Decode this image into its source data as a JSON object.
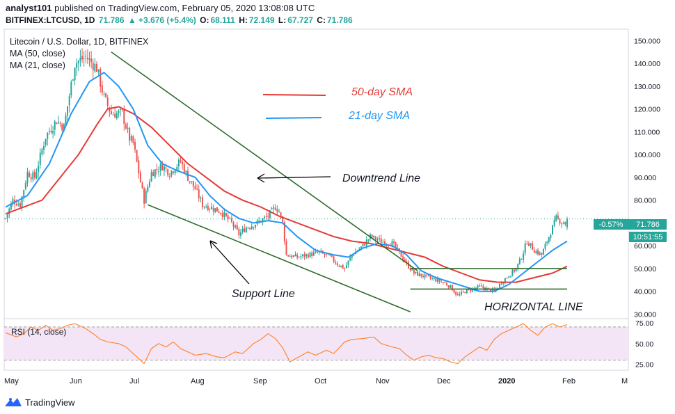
{
  "header": {
    "publisher": "analyst101",
    "published_text": "published on TradingView.com, February 05, 2020 13:08:08 UTC",
    "symbol": "BITFINEX:LTCUSD, 1D",
    "last": "71.786",
    "change": "▲ +3.676 (+5.4%)",
    "o_label": "O:",
    "o_value": "68.111",
    "h_label": "H:",
    "h_value": "72.149",
    "l_label": "L:",
    "l_value": "67.727",
    "c_label": "C:",
    "c_value": "71.786"
  },
  "legend": {
    "title": "Litecoin / U.S. Dollar, 1D, BITFINEX",
    "ma50": "MA (50, close)",
    "ma21": "MA (21, close)"
  },
  "annotations": {
    "sma50": "50-day SMA",
    "sma21": "21-day SMA",
    "downtrend": "Downtrend Line",
    "support": "Support Line",
    "horizontal": "HORIZONTAL LINE"
  },
  "rsi_label": "RSI (14, close)",
  "price_badges": {
    "change_pct": "-0.57%",
    "last": "71.786",
    "countdown": "10:51:55"
  },
  "footer": {
    "brand": "TradingView"
  },
  "colors": {
    "up": "#26a69a",
    "down": "#ef5350",
    "ma50": "#e53935",
    "ma21": "#2196f3",
    "trend": "#2e6b2e",
    "rsi": "#ff7f27",
    "rsi_band": "#f3e5f5",
    "text": "#131722"
  },
  "chart_data": [
    {
      "type": "candlestick",
      "title": "Litecoin / U.S. Dollar, 1D, BITFINEX",
      "y_ticks": [
        150,
        140,
        130,
        120,
        110,
        100,
        90,
        80,
        70,
        60,
        50,
        40,
        30
      ],
      "y_tick_labels": [
        "150.000",
        "140.000",
        "130.000",
        "120.000",
        "110.000",
        "100.000",
        "90.000",
        "80.000",
        "70.000",
        "60.000",
        "50.000",
        "40.000",
        "30.000"
      ],
      "ylim": [
        28,
        155
      ],
      "x_labels": [
        "May",
        "Jun",
        "Jul",
        "Aug",
        "Sep",
        "Oct",
        "Nov",
        "Dec",
        "2020",
        "Feb",
        "M"
      ],
      "price_anchors": [
        [
          0,
          72
        ],
        [
          4,
          80
        ],
        [
          8,
          78
        ],
        [
          12,
          92
        ],
        [
          16,
          90
        ],
        [
          22,
          108
        ],
        [
          28,
          115
        ],
        [
          32,
          112
        ],
        [
          38,
          140
        ],
        [
          44,
          143
        ],
        [
          50,
          138
        ],
        [
          54,
          125
        ],
        [
          58,
          118
        ],
        [
          64,
          118
        ],
        [
          68,
          107
        ],
        [
          70,
          105
        ],
        [
          74,
          88
        ],
        [
          76,
          80
        ],
        [
          80,
          92
        ],
        [
          86,
          95
        ],
        [
          90,
          92
        ],
        [
          96,
          97
        ],
        [
          100,
          90
        ],
        [
          104,
          85
        ],
        [
          108,
          78
        ],
        [
          112,
          77
        ],
        [
          118,
          75
        ],
        [
          124,
          70
        ],
        [
          128,
          65
        ],
        [
          132,
          68
        ],
        [
          138,
          70
        ],
        [
          144,
          73
        ],
        [
          148,
          77
        ],
        [
          150,
          75
        ],
        [
          152,
          70
        ],
        [
          154,
          56
        ],
        [
          160,
          55
        ],
        [
          166,
          56
        ],
        [
          172,
          57
        ],
        [
          178,
          55
        ],
        [
          182,
          52
        ],
        [
          186,
          50
        ],
        [
          190,
          56
        ],
        [
          196,
          60
        ],
        [
          200,
          64
        ],
        [
          206,
          62
        ],
        [
          212,
          61
        ],
        [
          216,
          57
        ],
        [
          220,
          52
        ],
        [
          224,
          48
        ],
        [
          228,
          47
        ],
        [
          232,
          46
        ],
        [
          236,
          45
        ],
        [
          240,
          44
        ],
        [
          244,
          42
        ],
        [
          248,
          38
        ],
        [
          252,
          40
        ],
        [
          256,
          41
        ],
        [
          260,
          42
        ],
        [
          264,
          41
        ],
        [
          268,
          40
        ],
        [
          272,
          44
        ],
        [
          276,
          47
        ],
        [
          280,
          50
        ],
        [
          283,
          55
        ],
        [
          286,
          62
        ],
        [
          290,
          58
        ],
        [
          294,
          56
        ],
        [
          298,
          64
        ],
        [
          302,
          72
        ],
        [
          306,
          70
        ],
        [
          308,
          71.8
        ]
      ],
      "sma50": [
        [
          0,
          74
        ],
        [
          20,
          80
        ],
        [
          40,
          100
        ],
        [
          50,
          113
        ],
        [
          56,
          120
        ],
        [
          62,
          121
        ],
        [
          70,
          118
        ],
        [
          80,
          112
        ],
        [
          90,
          104
        ],
        [
          100,
          96
        ],
        [
          110,
          90
        ],
        [
          120,
          84
        ],
        [
          130,
          80
        ],
        [
          140,
          77
        ],
        [
          150,
          73
        ],
        [
          160,
          70
        ],
        [
          170,
          67
        ],
        [
          180,
          64
        ],
        [
          190,
          62
        ],
        [
          200,
          61
        ],
        [
          210,
          59
        ],
        [
          220,
          57
        ],
        [
          230,
          55
        ],
        [
          240,
          51
        ],
        [
          250,
          48
        ],
        [
          260,
          45
        ],
        [
          270,
          44
        ],
        [
          280,
          44
        ],
        [
          290,
          46
        ],
        [
          300,
          48
        ],
        [
          308,
          51
        ]
      ],
      "sma21": [
        [
          0,
          77
        ],
        [
          12,
          82
        ],
        [
          24,
          96
        ],
        [
          36,
          118
        ],
        [
          46,
          132
        ],
        [
          54,
          136
        ],
        [
          62,
          130
        ],
        [
          70,
          120
        ],
        [
          78,
          104
        ],
        [
          86,
          96
        ],
        [
          94,
          93
        ],
        [
          104,
          90
        ],
        [
          112,
          82
        ],
        [
          120,
          76
        ],
        [
          128,
          72
        ],
        [
          136,
          70
        ],
        [
          144,
          71
        ],
        [
          152,
          70
        ],
        [
          160,
          64
        ],
        [
          170,
          58
        ],
        [
          180,
          56
        ],
        [
          188,
          55
        ],
        [
          196,
          59
        ],
        [
          204,
          61
        ],
        [
          212,
          60
        ],
        [
          220,
          56
        ],
        [
          228,
          49
        ],
        [
          236,
          46
        ],
        [
          244,
          44
        ],
        [
          252,
          42
        ],
        [
          260,
          40
        ],
        [
          268,
          40
        ],
        [
          276,
          43
        ],
        [
          284,
          48
        ],
        [
          292,
          53
        ],
        [
          300,
          58
        ],
        [
          308,
          62
        ]
      ],
      "lines": {
        "downtrend": [
          [
            58,
            145
          ],
          [
            226,
            49
          ]
        ],
        "support": [
          [
            78,
            78
          ],
          [
            222,
            31
          ]
        ],
        "h_upper": [
          [
            222,
            50
          ],
          [
            308,
            50
          ]
        ],
        "h_lower": [
          [
            222,
            41
          ],
          [
            308,
            41
          ]
        ]
      },
      "last_price": 71.786
    },
    {
      "type": "line",
      "title": "RSI (14, close)",
      "y_ticks": [
        75,
        50,
        25
      ],
      "y_tick_labels": [
        "75.00",
        "50.00",
        "25.00"
      ],
      "ylim": [
        18,
        80
      ],
      "bands": [
        70,
        30
      ],
      "values": [
        [
          0,
          63
        ],
        [
          6,
          58
        ],
        [
          10,
          62
        ],
        [
          14,
          70
        ],
        [
          18,
          66
        ],
        [
          22,
          72
        ],
        [
          26,
          66
        ],
        [
          30,
          68
        ],
        [
          34,
          72
        ],
        [
          38,
          74
        ],
        [
          44,
          68
        ],
        [
          48,
          62
        ],
        [
          52,
          55
        ],
        [
          56,
          52
        ],
        [
          62,
          50
        ],
        [
          66,
          46
        ],
        [
          70,
          38
        ],
        [
          74,
          30
        ],
        [
          76,
          26
        ],
        [
          80,
          44
        ],
        [
          84,
          50
        ],
        [
          88,
          46
        ],
        [
          92,
          52
        ],
        [
          96,
          44
        ],
        [
          100,
          40
        ],
        [
          104,
          36
        ],
        [
          110,
          38
        ],
        [
          116,
          34
        ],
        [
          120,
          33
        ],
        [
          126,
          40
        ],
        [
          130,
          38
        ],
        [
          136,
          50
        ],
        [
          140,
          55
        ],
        [
          144,
          62
        ],
        [
          148,
          56
        ],
        [
          152,
          45
        ],
        [
          156,
          28
        ],
        [
          160,
          33
        ],
        [
          166,
          40
        ],
        [
          170,
          36
        ],
        [
          176,
          42
        ],
        [
          180,
          38
        ],
        [
          186,
          52
        ],
        [
          190,
          55
        ],
        [
          196,
          56
        ],
        [
          202,
          58
        ],
        [
          206,
          50
        ],
        [
          212,
          46
        ],
        [
          216,
          44
        ],
        [
          220,
          36
        ],
        [
          224,
          30
        ],
        [
          228,
          34
        ],
        [
          232,
          36
        ],
        [
          236,
          33
        ],
        [
          240,
          32
        ],
        [
          244,
          28
        ],
        [
          248,
          26
        ],
        [
          252,
          34
        ],
        [
          256,
          40
        ],
        [
          260,
          46
        ],
        [
          264,
          42
        ],
        [
          268,
          55
        ],
        [
          272,
          62
        ],
        [
          276,
          66
        ],
        [
          280,
          70
        ],
        [
          284,
          74
        ],
        [
          288,
          66
        ],
        [
          292,
          60
        ],
        [
          296,
          70
        ],
        [
          300,
          74
        ],
        [
          304,
          70
        ],
        [
          308,
          73
        ]
      ]
    }
  ]
}
